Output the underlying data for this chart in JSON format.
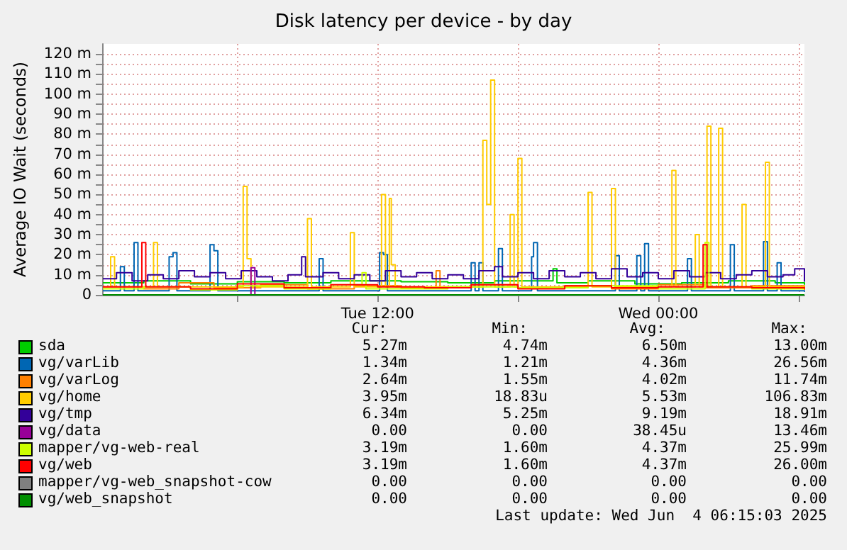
{
  "chart_data": {
    "type": "step",
    "title": "Disk latency per device - by day",
    "ylabel": "Average IO Wait (seconds)",
    "xlim": [
      "2025-06-03T00:15",
      "2025-06-04T06:15"
    ],
    "xticks": [
      {
        "value": "2025-06-03T06:00",
        "label": null
      },
      {
        "value": "2025-06-03T12:00",
        "label": "Tue 12:00"
      },
      {
        "value": "2025-06-03T18:00",
        "label": null
      },
      {
        "value": "2025-06-04T00:00",
        "label": "Wed 00:00"
      },
      {
        "value": "2025-06-04T06:00",
        "label": null
      }
    ],
    "ylim": [
      0,
      125
    ],
    "yticks": [
      {
        "value": 0,
        "label": "0"
      },
      {
        "value": 5,
        "label": null
      },
      {
        "value": 10,
        "label": "10 m"
      },
      {
        "value": 15,
        "label": null
      },
      {
        "value": 20,
        "label": "20 m"
      },
      {
        "value": 25,
        "label": null
      },
      {
        "value": 30,
        "label": "30 m"
      },
      {
        "value": 35,
        "label": null
      },
      {
        "value": 40,
        "label": "40 m"
      },
      {
        "value": 45,
        "label": null
      },
      {
        "value": 50,
        "label": "50 m"
      },
      {
        "value": 55,
        "label": null
      },
      {
        "value": 60,
        "label": "60 m"
      },
      {
        "value": 65,
        "label": null
      },
      {
        "value": 70,
        "label": "70 m"
      },
      {
        "value": 75,
        "label": null
      },
      {
        "value": 80,
        "label": "80 m"
      },
      {
        "value": 85,
        "label": null
      },
      {
        "value": 90,
        "label": "90 m"
      },
      {
        "value": 95,
        "label": null
      },
      {
        "value": 100,
        "label": "100 m"
      },
      {
        "value": 105,
        "label": null
      },
      {
        "value": 110,
        "label": "110 m"
      },
      {
        "value": 115,
        "label": null
      },
      {
        "value": 120,
        "label": "120 m"
      }
    ],
    "grid": true,
    "legend": "bottom",
    "series": [
      {
        "name": "sda",
        "color": "#00cc00",
        "x": [
          "2025-06-03T00:15",
          "2025-06-03T02:00",
          "2025-06-03T04:00",
          "2025-06-03T06:00",
          "2025-06-03T08:00",
          "2025-06-03T10:00",
          "2025-06-03T13:00",
          "2025-06-03T15:00",
          "2025-06-03T17:00",
          "2025-06-03T19:30",
          "2025-06-03T19:40",
          "2025-06-03T21:00",
          "2025-06-03T23:00",
          "2025-06-04T01:00",
          "2025-06-04T03:00",
          "2025-06-04T05:00",
          "2025-06-04T06:15"
        ],
        "values": [
          6,
          7,
          5.5,
          6.5,
          6,
          7,
          6.5,
          6,
          7,
          13,
          6,
          7,
          5.5,
          6,
          7,
          6,
          5
        ]
      },
      {
        "name": "vg/varLib",
        "color": "#0066b3",
        "x": [
          "2025-06-03T00:15",
          "2025-06-03T01:00",
          "2025-06-03T01:10",
          "2025-06-03T01:35",
          "2025-06-03T01:45",
          "2025-06-03T03:05",
          "2025-06-03T03:15",
          "2025-06-03T03:25",
          "2025-06-03T04:50",
          "2025-06-03T05:00",
          "2025-06-03T05:10",
          "2025-06-03T09:30",
          "2025-06-03T09:40",
          "2025-06-03T12:05",
          "2025-06-03T12:15",
          "2025-06-03T12:25",
          "2025-06-03T16:00",
          "2025-06-03T16:10",
          "2025-06-03T16:20",
          "2025-06-03T16:30",
          "2025-06-03T17:10",
          "2025-06-03T17:20",
          "2025-06-03T18:35",
          "2025-06-03T18:40",
          "2025-06-03T18:50",
          "2025-06-03T22:10",
          "2025-06-03T22:20",
          "2025-06-03T23:05",
          "2025-06-03T23:15",
          "2025-06-03T23:25",
          "2025-06-03T23:35",
          "2025-06-04T01:15",
          "2025-06-04T01:25",
          "2025-06-04T03:05",
          "2025-06-04T03:15",
          "2025-06-04T04:30",
          "2025-06-04T04:40",
          "2025-06-04T05:05",
          "2025-06-04T05:15",
          "2025-06-04T06:15"
        ],
        "values": [
          2,
          14,
          2,
          26,
          2,
          19,
          21,
          2,
          25,
          22,
          2,
          18,
          2,
          21,
          20,
          2,
          16,
          2,
          16,
          2,
          23,
          2,
          19,
          26,
          2,
          19.5,
          2,
          19.5,
          2,
          25.5,
          2,
          18,
          2,
          25,
          2,
          26.5,
          2,
          16,
          2,
          1.5
        ]
      },
      {
        "name": "vg/varLog",
        "color": "#ff8000",
        "x": [
          "2025-06-03T00:15",
          "2025-06-03T02:00",
          "2025-06-03T03:30",
          "2025-06-03T05:00",
          "2025-06-03T07:00",
          "2025-06-03T09:00",
          "2025-06-03T11:00",
          "2025-06-03T13:00",
          "2025-06-03T14:30",
          "2025-06-03T14:40",
          "2025-06-03T16:00",
          "2025-06-03T18:00",
          "2025-06-03T20:00",
          "2025-06-03T22:00",
          "2025-06-04T00:00",
          "2025-06-04T02:00",
          "2025-06-04T04:00",
          "2025-06-04T06:15"
        ],
        "values": [
          4,
          3,
          6,
          3.5,
          5,
          3,
          4.5,
          3.5,
          12,
          4,
          5,
          3.5,
          4.5,
          3,
          5,
          3.5,
          4.5,
          2.5
        ]
      },
      {
        "name": "vg/home",
        "color": "#ffcc00",
        "x": [
          "2025-06-03T00:15",
          "2025-06-03T00:35",
          "2025-06-03T00:45",
          "2025-06-03T02:25",
          "2025-06-03T02:35",
          "2025-06-03T06:15",
          "2025-06-03T06:25",
          "2025-06-03T06:35",
          "2025-06-03T09:00",
          "2025-06-03T09:10",
          "2025-06-03T10:50",
          "2025-06-03T11:00",
          "2025-06-03T12:10",
          "2025-06-03T12:20",
          "2025-06-03T12:30",
          "2025-06-03T12:35",
          "2025-06-03T12:45",
          "2025-06-03T16:30",
          "2025-06-03T16:40",
          "2025-06-03T16:50",
          "2025-06-03T17:00",
          "2025-06-03T17:40",
          "2025-06-03T17:50",
          "2025-06-03T18:00",
          "2025-06-03T18:10",
          "2025-06-03T21:00",
          "2025-06-03T21:10",
          "2025-06-03T22:00",
          "2025-06-03T22:10",
          "2025-06-04T00:35",
          "2025-06-04T00:45",
          "2025-06-04T01:35",
          "2025-06-04T01:45",
          "2025-06-04T02:05",
          "2025-06-04T02:15",
          "2025-06-04T02:35",
          "2025-06-04T02:45",
          "2025-06-04T03:35",
          "2025-06-04T03:45",
          "2025-06-04T04:35",
          "2025-06-04T04:45",
          "2025-06-04T06:15"
        ],
        "values": [
          4,
          19,
          4,
          26,
          4,
          54,
          18,
          4,
          38,
          4,
          31,
          4,
          50,
          4,
          48,
          15,
          4,
          77,
          45,
          107,
          4,
          40,
          4,
          68,
          4,
          51,
          4,
          53,
          4,
          62,
          4,
          30,
          4,
          84,
          4,
          83,
          4,
          45,
          4,
          66,
          4,
          4
        ]
      },
      {
        "name": "vg/tmp",
        "color": "#330099",
        "x": [
          "2025-06-03T00:15",
          "2025-06-03T00:50",
          "2025-06-03T01:30",
          "2025-06-03T02:10",
          "2025-06-03T02:50",
          "2025-06-03T03:30",
          "2025-06-03T04:10",
          "2025-06-03T04:50",
          "2025-06-03T05:30",
          "2025-06-03T06:10",
          "2025-06-03T06:50",
          "2025-06-03T07:30",
          "2025-06-03T08:10",
          "2025-06-03T08:45",
          "2025-06-03T08:55",
          "2025-06-03T09:40",
          "2025-06-03T10:20",
          "2025-06-03T11:00",
          "2025-06-03T11:40",
          "2025-06-03T12:20",
          "2025-06-03T13:00",
          "2025-06-03T13:40",
          "2025-06-03T14:20",
          "2025-06-03T15:00",
          "2025-06-03T15:40",
          "2025-06-03T16:20",
          "2025-06-03T17:00",
          "2025-06-03T17:20",
          "2025-06-03T18:00",
          "2025-06-03T18:40",
          "2025-06-03T19:20",
          "2025-06-03T20:00",
          "2025-06-03T20:40",
          "2025-06-03T21:20",
          "2025-06-03T22:00",
          "2025-06-03T22:40",
          "2025-06-03T23:20",
          "2025-06-04T00:00",
          "2025-06-04T00:40",
          "2025-06-04T01:20",
          "2025-06-04T02:00",
          "2025-06-04T02:40",
          "2025-06-04T03:20",
          "2025-06-04T04:00",
          "2025-06-04T04:40",
          "2025-06-04T05:20",
          "2025-06-04T05:50",
          "2025-06-04T06:15"
        ],
        "values": [
          8,
          11,
          7,
          10,
          8,
          12,
          9,
          11,
          8,
          12,
          9,
          7,
          10,
          19,
          9,
          11,
          8,
          10,
          7,
          12,
          9,
          11,
          8,
          10,
          8,
          12,
          14,
          9,
          11,
          8,
          12,
          9,
          11,
          8,
          13,
          9,
          11,
          8,
          12,
          9,
          11,
          8,
          10,
          12,
          9,
          10,
          13,
          6.5
        ]
      },
      {
        "name": "vg/data",
        "color": "#990099",
        "x": [
          "2025-06-03T06:30",
          "2025-06-03T06:35",
          "2025-06-03T06:45"
        ],
        "values": [
          0,
          13.5,
          0
        ]
      },
      {
        "name": "mapper/vg-web-real",
        "color": "#ccff00",
        "x": [
          "2025-06-03T00:15",
          "2025-06-03T02:00",
          "2025-06-03T04:00",
          "2025-06-03T06:00",
          "2025-06-03T08:00",
          "2025-06-03T10:00",
          "2025-06-03T11:20",
          "2025-06-03T11:30",
          "2025-06-03T15:00",
          "2025-06-03T18:00",
          "2025-06-03T21:00",
          "2025-06-04T00:00",
          "2025-06-04T02:00",
          "2025-06-04T02:10",
          "2025-06-04T04:00",
          "2025-06-04T06:15"
        ],
        "values": [
          3,
          4,
          2.5,
          4.5,
          3,
          5,
          11,
          3,
          4,
          3.5,
          4.5,
          3,
          26,
          4,
          3,
          3
        ]
      },
      {
        "name": "vg/web",
        "color": "#ff0000",
        "x": [
          "2025-06-03T00:15",
          "2025-06-03T01:55",
          "2025-06-03T02:05",
          "2025-06-03T04:00",
          "2025-06-03T06:00",
          "2025-06-03T08:00",
          "2025-06-03T10:00",
          "2025-06-03T12:00",
          "2025-06-03T14:00",
          "2025-06-03T16:00",
          "2025-06-03T18:00",
          "2025-06-03T20:00",
          "2025-06-03T22:00",
          "2025-06-04T00:00",
          "2025-06-04T01:55",
          "2025-06-04T02:05",
          "2025-06-04T04:00",
          "2025-06-04T06:15"
        ],
        "values": [
          4,
          26,
          4,
          3,
          5.5,
          3.5,
          5,
          4,
          3.5,
          5,
          3,
          4.5,
          3.5,
          4,
          25,
          4,
          3.5,
          3
        ]
      },
      {
        "name": "mapper/vg-web_snapshot-cow",
        "color": "#808080",
        "x": [
          "2025-06-03T00:15",
          "2025-06-04T06:15"
        ],
        "values": [
          0,
          0
        ]
      },
      {
        "name": "vg/web_snapshot",
        "color": "#008f00",
        "x": [
          "2025-06-03T00:15",
          "2025-06-04T06:15"
        ],
        "values": [
          0,
          0
        ]
      }
    ],
    "annotations": [
      "Cur:",
      "Min:",
      "Avg:",
      "Max:",
      "5.27m",
      "4.74m",
      "6.50m",
      "13.00m",
      "1.34m",
      "1.21m",
      "4.36m",
      "26.56m",
      "2.64m",
      "1.55m",
      "4.02m",
      "11.74m",
      "3.95m",
      "18.83u",
      "5.53m",
      "106.83m",
      "6.34m",
      "5.25m",
      "9.19m",
      "18.91m",
      "0.00",
      "0.00",
      "38.45u",
      "13.46m",
      "3.19m",
      "1.60m",
      "4.37m",
      "25.99m",
      "3.19m",
      "1.60m",
      "4.37m",
      "26.00m",
      "0.00",
      "0.00",
      "0.00",
      "0.00",
      "0.00",
      "0.00",
      "0.00",
      "0.00",
      "Last update: Wed Jun  4 06:15:03 2025"
    ]
  }
}
